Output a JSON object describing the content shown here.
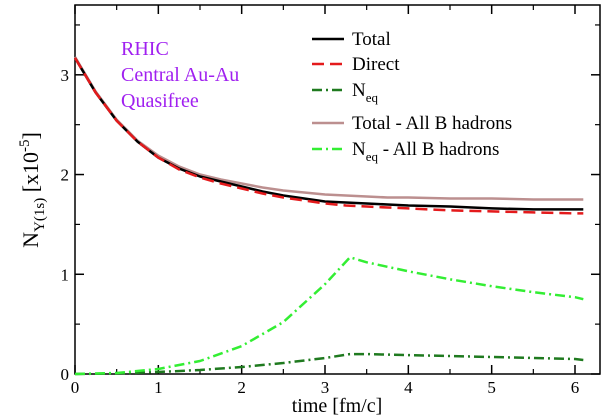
{
  "chart_data": {
    "type": "line",
    "xlabel": "time [fm/c]",
    "ylabel": {
      "base": "N",
      "sub": "Υ(1s)",
      "unit_prefix": " [x10",
      "unit_exp": "-5",
      "unit_suffix": "]"
    },
    "xlim": [
      0,
      6.3
    ],
    "ylim": [
      0,
      3.7
    ],
    "x_ticks": [
      0,
      1,
      2,
      3,
      4,
      5,
      6
    ],
    "y_ticks": [
      0,
      1,
      2,
      3
    ],
    "grid": false,
    "legend_position": "top-right",
    "annotation": [
      "RHIC",
      "Central Au-Au",
      "Quasifree"
    ],
    "annotation_color": "#a020f0",
    "series": [
      {
        "name": "Total",
        "legend": {
          "text": "Total",
          "sub": ""
        },
        "color": "#000000",
        "dash": "",
        "x": [
          0,
          0.25,
          0.5,
          0.75,
          1.0,
          1.25,
          1.5,
          1.75,
          2.0,
          2.25,
          2.5,
          2.75,
          3.0,
          3.25,
          3.5,
          3.75,
          4.0,
          4.5,
          5.0,
          5.5,
          6.0,
          6.1
        ],
        "y": [
          3.17,
          2.82,
          2.54,
          2.33,
          2.17,
          2.06,
          1.98,
          1.93,
          1.88,
          1.83,
          1.79,
          1.76,
          1.73,
          1.72,
          1.71,
          1.7,
          1.69,
          1.68,
          1.66,
          1.65,
          1.65,
          1.65
        ]
      },
      {
        "name": "Direct",
        "legend": {
          "text": "Direct",
          "sub": ""
        },
        "color": "#e41a1c",
        "dash": "12,6",
        "x": [
          0,
          0.25,
          0.5,
          0.75,
          1.0,
          1.25,
          1.5,
          1.75,
          2.0,
          2.25,
          2.5,
          2.75,
          3.0,
          3.25,
          3.5,
          3.75,
          4.0,
          4.5,
          5.0,
          5.5,
          6.0,
          6.1
        ],
        "y": [
          3.17,
          2.82,
          2.54,
          2.33,
          2.17,
          2.05,
          1.97,
          1.91,
          1.86,
          1.81,
          1.77,
          1.74,
          1.71,
          1.69,
          1.68,
          1.67,
          1.66,
          1.64,
          1.63,
          1.62,
          1.61,
          1.61
        ]
      },
      {
        "name": "N_eq",
        "legend": {
          "text": "N",
          "sub": "eq"
        },
        "color": "#1f7a1f",
        "dash": "10,4,2,4",
        "x": [
          0,
          0.5,
          1.0,
          1.5,
          2.0,
          2.5,
          3.0,
          3.3,
          3.5,
          4.0,
          4.5,
          5.0,
          5.5,
          6.0,
          6.1
        ],
        "y": [
          0.0,
          0.005,
          0.02,
          0.04,
          0.07,
          0.11,
          0.16,
          0.2,
          0.2,
          0.19,
          0.18,
          0.17,
          0.16,
          0.15,
          0.14
        ]
      },
      {
        "name": "Total - All B hadrons",
        "legend": {
          "text": "Total - All B hadrons",
          "sub": ""
        },
        "color": "#bc8f8f",
        "dash": "",
        "x": [
          0,
          0.25,
          0.5,
          0.75,
          1.0,
          1.25,
          1.5,
          1.75,
          2.0,
          2.25,
          2.5,
          2.75,
          3.0,
          3.25,
          3.5,
          3.75,
          4.0,
          4.5,
          5.0,
          5.5,
          6.0,
          6.1
        ],
        "y": [
          3.18,
          2.83,
          2.55,
          2.34,
          2.19,
          2.08,
          2.0,
          1.95,
          1.91,
          1.87,
          1.84,
          1.82,
          1.8,
          1.79,
          1.78,
          1.77,
          1.77,
          1.76,
          1.76,
          1.75,
          1.75,
          1.75
        ]
      },
      {
        "name": "N_eq - All B hadrons",
        "legend": {
          "text": "N",
          "sub": "eq",
          "suffix": " - All B hadrons"
        },
        "color": "#33ee33",
        "dash": "10,4,2,4",
        "x": [
          0,
          0.5,
          1.0,
          1.5,
          2.0,
          2.5,
          3.0,
          3.3,
          3.5,
          4.0,
          4.5,
          5.0,
          5.5,
          6.0,
          6.1
        ],
        "y": [
          0.0,
          0.01,
          0.05,
          0.13,
          0.28,
          0.52,
          0.9,
          1.17,
          1.12,
          1.03,
          0.95,
          0.88,
          0.82,
          0.77,
          0.75
        ]
      }
    ]
  }
}
